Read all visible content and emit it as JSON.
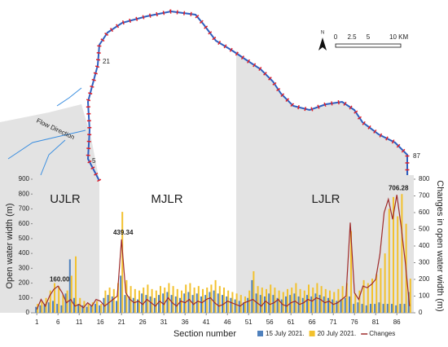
{
  "chart_data": {
    "type": "bar-line",
    "y_label": "Open water width (m)",
    "y2_label": "Changes in open water width (m)",
    "x_label": "Section number",
    "region_labels": [
      "UJLR",
      "MJLR",
      "LJLR"
    ],
    "x": [
      1,
      2,
      3,
      4,
      5,
      6,
      7,
      8,
      9,
      10,
      11,
      12,
      13,
      14,
      15,
      16,
      17,
      18,
      19,
      20,
      21,
      22,
      23,
      24,
      25,
      26,
      27,
      28,
      29,
      30,
      31,
      32,
      33,
      34,
      35,
      36,
      37,
      38,
      39,
      40,
      41,
      42,
      43,
      44,
      45,
      46,
      47,
      48,
      49,
      50,
      51,
      52,
      53,
      54,
      55,
      56,
      57,
      58,
      59,
      60,
      61,
      62,
      63,
      64,
      65,
      66,
      67,
      68,
      69,
      70,
      71,
      72,
      73,
      74,
      75,
      76,
      77,
      78,
      79,
      80,
      81,
      82,
      83,
      84,
      85,
      86,
      87,
      88,
      89
    ],
    "xlim": [
      0,
      90
    ],
    "xticks": [
      1,
      6,
      11,
      16,
      21,
      26,
      31,
      36,
      41,
      46,
      51,
      56,
      61,
      66,
      71,
      76,
      81,
      86
    ],
    "ylim": [
      0,
      900
    ],
    "yticks": [
      0,
      100,
      200,
      300,
      400,
      500,
      600,
      700,
      800,
      900
    ],
    "y2lim": [
      0,
      800
    ],
    "y2ticks": [
      0,
      100,
      200,
      300,
      400,
      500,
      600,
      700,
      800
    ],
    "series": [
      {
        "name": "15 July 2021.",
        "color": "#4f81bd",
        "values": [
          40,
          50,
          60,
          70,
          80,
          60,
          50,
          130,
          360,
          100,
          60,
          50,
          40,
          50,
          60,
          50,
          100,
          120,
          110,
          80,
          250,
          120,
          110,
          100,
          90,
          130,
          120,
          110,
          100,
          120,
          130,
          140,
          120,
          110,
          100,
          130,
          140,
          120,
          130,
          110,
          120,
          140,
          150,
          130,
          120,
          110,
          100,
          90,
          80,
          70,
          100,
          220,
          130,
          120,
          110,
          130,
          120,
          100,
          90,
          110,
          120,
          130,
          110,
          100,
          120,
          110,
          130,
          120,
          110,
          100,
          90,
          80,
          90,
          100,
          110,
          60,
          70,
          60,
          50,
          60,
          60,
          70,
          60,
          60,
          60,
          50,
          60,
          60,
          140
        ]
      },
      {
        "name": "20 July 2021.",
        "color": "#f2c12e",
        "values": [
          60,
          80,
          100,
          150,
          200,
          180,
          120,
          150,
          250,
          380,
          100,
          80,
          60,
          70,
          80,
          60,
          150,
          170,
          160,
          200,
          680,
          220,
          180,
          160,
          150,
          170,
          190,
          160,
          150,
          180,
          170,
          200,
          180,
          160,
          150,
          190,
          200,
          170,
          180,
          160,
          170,
          190,
          220,
          180,
          170,
          150,
          140,
          130,
          120,
          110,
          150,
          280,
          180,
          170,
          160,
          190,
          170,
          150,
          140,
          160,
          170,
          200,
          160,
          150,
          190,
          170,
          200,
          180,
          160,
          150,
          140,
          160,
          180,
          200,
          550,
          130,
          150,
          220,
          200,
          230,
          260,
          300,
          400,
          700,
          780,
          650,
          800,
          600,
          230
        ]
      },
      {
        "name": "Changes",
        "color": "#9e2a2a",
        "axis": "y2",
        "values": [
          20,
          80,
          40,
          100,
          140,
          160,
          120,
          60,
          80,
          40,
          50,
          30,
          60,
          40,
          80,
          70,
          40,
          60,
          80,
          100,
          439.34,
          120,
          80,
          60,
          70,
          50,
          80,
          60,
          40,
          70,
          50,
          90,
          60,
          40,
          70,
          60,
          80,
          50,
          70,
          60,
          80,
          90,
          60,
          40,
          50,
          70,
          60,
          50,
          40,
          60,
          70,
          80,
          60,
          40,
          70,
          50,
          60,
          80,
          50,
          40,
          60,
          70,
          50,
          60,
          80,
          70,
          90,
          80,
          60,
          70,
          50,
          60,
          80,
          100,
          540,
          120,
          80,
          160,
          150,
          170,
          200,
          350,
          600,
          680,
          560,
          706.28,
          520,
          300,
          40
        ],
        "value_labels": [
          null,
          null,
          null,
          null,
          null,
          "160.00",
          null,
          null,
          null,
          null,
          null,
          null,
          null,
          null,
          null,
          null,
          null,
          null,
          null,
          null,
          "439.34",
          null,
          null,
          null,
          null,
          null,
          null,
          null,
          null,
          null,
          null,
          null,
          null,
          null,
          null,
          null,
          null,
          null,
          null,
          null,
          null,
          null,
          null,
          null,
          null,
          null,
          null,
          null,
          null,
          null,
          null,
          null,
          null,
          null,
          null,
          null,
          null,
          null,
          null,
          null,
          null,
          null,
          null,
          null,
          null,
          null,
          null,
          null,
          null,
          null,
          null,
          null,
          null,
          null,
          null,
          null,
          null,
          null,
          null,
          null,
          null,
          null,
          null,
          null,
          null,
          "706.28",
          null,
          null,
          null
        ]
      }
    ]
  },
  "map": {
    "flow_label": "Flow Direction",
    "section_labels": [
      "21",
      "5",
      "87"
    ],
    "north": "N",
    "scale_labels": [
      "0",
      "2.5",
      "5",
      "10 KM"
    ]
  }
}
